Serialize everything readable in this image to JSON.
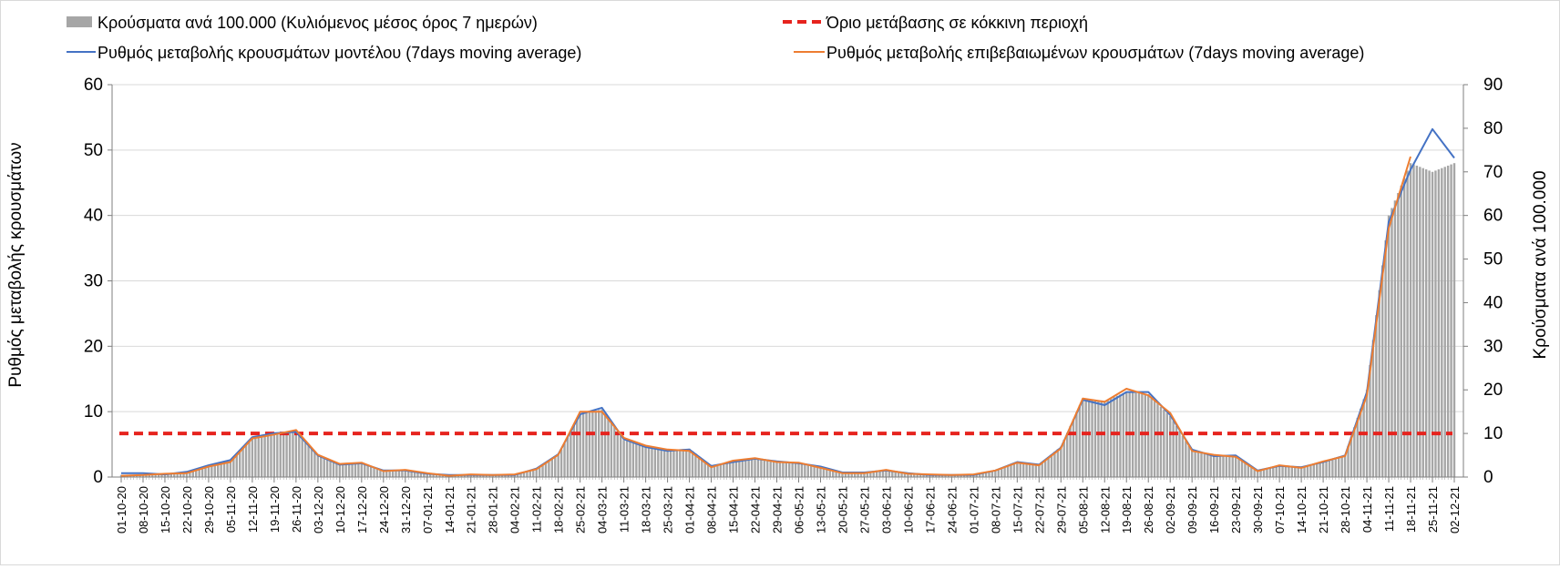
{
  "chart_data": {
    "type": "bar",
    "legend": {
      "bars": "Κρούσματα ανά 100.000 (Κυλιόμενος μέσος όρος 7 ημερών)",
      "threshold": "Όριο μετάβασης σε κόκκινη περιοχή",
      "model": "Ρυθμός μεταβολής κρουσμάτων μοντέλου (7days moving average)",
      "confirmed": "Ρυθμός μεταβολής επιβεβαιωμένων κρουσμάτων (7days moving average)",
      "placement": "top"
    },
    "y_left": {
      "label": "Ρυθμός μεταβολής κρουσμάτων",
      "range": [
        0,
        60
      ],
      "ticks": [
        "0",
        "10",
        "20",
        "30",
        "40",
        "50",
        "60"
      ]
    },
    "y_right": {
      "label": "Κρούσματα ανά 100.000",
      "range": [
        0,
        90
      ],
      "ticks": [
        "0",
        "10",
        "20",
        "30",
        "40",
        "50",
        "60",
        "70",
        "80",
        "90"
      ]
    },
    "x_labels": [
      "01-10-20",
      "08-10-20",
      "15-10-20",
      "22-10-20",
      "29-10-20",
      "05-11-20",
      "12-11-20",
      "19-11-20",
      "26-11-20",
      "03-12-20",
      "10-12-20",
      "17-12-20",
      "24-12-20",
      "31-12-20",
      "07-01-21",
      "14-01-21",
      "21-01-21",
      "28-01-21",
      "04-02-21",
      "11-02-21",
      "18-02-21",
      "25-02-21",
      "04-03-21",
      "11-03-21",
      "18-03-21",
      "25-03-21",
      "01-04-21",
      "08-04-21",
      "15-04-21",
      "22-04-21",
      "29-04-21",
      "06-05-21",
      "13-05-21",
      "20-05-21",
      "27-05-21",
      "03-06-21",
      "10-06-21",
      "17-06-21",
      "24-06-21",
      "01-07-21",
      "08-07-21",
      "15-07-21",
      "22-07-21",
      "29-07-21",
      "05-08-21",
      "12-08-21",
      "19-08-21",
      "26-08-21",
      "02-09-21",
      "09-09-21",
      "16-09-21",
      "23-09-21",
      "30-09-21",
      "07-10-21",
      "14-10-21",
      "21-10-21",
      "28-10-21",
      "04-11-21",
      "11-11-21",
      "18-11-21",
      "25-11-21",
      "02-12-21"
    ],
    "threshold_value": 6.67,
    "weekly_cases_per_100k": [
      0.5,
      0.6,
      0.9,
      1.2,
      2.7,
      4.0,
      9.2,
      10.0,
      10.5,
      5.2,
      2.9,
      3.2,
      1.6,
      1.5,
      0.8,
      0.4,
      0.5,
      0.4,
      0.5,
      2.0,
      5.0,
      14.5,
      15.5,
      8.5,
      7.0,
      6.2,
      6.5,
      2.5,
      3.5,
      4.2,
      3.5,
      3.2,
      2.4,
      1.0,
      1.0,
      1.5,
      0.9,
      0.5,
      0.4,
      0.5,
      1.5,
      3.5,
      2.8,
      7.0,
      18.0,
      17.5,
      19.5,
      19.0,
      14.0,
      6.0,
      4.8,
      5.0,
      1.5,
      2.5,
      2.3,
      3.5,
      5.0,
      20.0,
      60.0,
      72.0,
      70.0,
      72.0
    ],
    "model_rate": [
      0.6,
      0.6,
      0.4,
      0.8,
      1.8,
      2.6,
      6.1,
      6.7,
      6.9,
      3.3,
      1.9,
      2.1,
      1.0,
      1.0,
      0.5,
      0.3,
      0.3,
      0.3,
      0.3,
      1.3,
      3.5,
      9.6,
      10.6,
      5.8,
      4.6,
      4.0,
      4.2,
      1.7,
      2.3,
      2.8,
      2.4,
      2.1,
      1.6,
      0.7,
      0.7,
      1.0,
      0.6,
      0.3,
      0.3,
      0.3,
      1.0,
      2.3,
      1.9,
      4.5,
      11.8,
      11.0,
      13.0,
      13.0,
      9.5,
      4.2,
      3.2,
      3.3,
      1.0,
      1.7,
      1.5,
      2.3,
      3.3,
      13.0,
      39.0,
      47.0,
      53.2,
      48.8
    ],
    "confirmed_rate": [
      0.2,
      0.3,
      0.5,
      0.6,
      1.6,
      2.3,
      5.9,
      6.5,
      7.2,
      3.4,
      2.0,
      2.2,
      0.9,
      1.1,
      0.6,
      0.2,
      0.4,
      0.3,
      0.4,
      1.2,
      3.4,
      10.0,
      10.0,
      6.0,
      4.8,
      4.2,
      4.0,
      1.5,
      2.5,
      2.9,
      2.3,
      2.2,
      1.4,
      0.6,
      0.6,
      1.1,
      0.5,
      0.4,
      0.3,
      0.4,
      1.0,
      2.2,
      1.8,
      4.4,
      12.0,
      11.5,
      13.5,
      12.5,
      9.8,
      4.0,
      3.4,
      3.1,
      0.9,
      1.8,
      1.4,
      2.4,
      3.2,
      12.5,
      38.0,
      49.0,
      null,
      null
    ]
  }
}
